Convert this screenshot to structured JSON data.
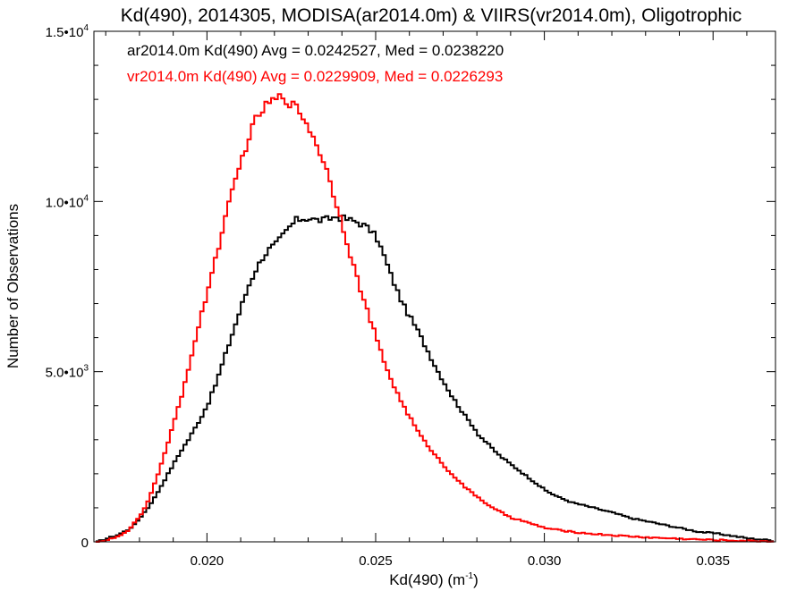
{
  "chart_data": {
    "type": "line",
    "title": "Kd(490), 2014305, MODISA(ar2014.0m) & VIIRS(vr2014.0m), Oligotrophic",
    "xlabel_main": "Kd(490) (m",
    "xlabel_sup": "-1",
    "xlabel_tail": ")",
    "ylabel": "Number of Observations",
    "xlim": [
      0.01665,
      0.03685
    ],
    "ylim": [
      0,
      15000
    ],
    "x_ticks": [
      {
        "value": 0.02,
        "label": "0.020"
      },
      {
        "value": 0.025,
        "label": "0.025"
      },
      {
        "value": 0.03,
        "label": "0.030"
      },
      {
        "value": 0.035,
        "label": "0.035"
      }
    ],
    "y_ticks": [
      {
        "value": 0,
        "mant": "0",
        "sup": ""
      },
      {
        "value": 5000,
        "mant": "5.0•10",
        "sup": "3"
      },
      {
        "value": 10000,
        "mant": "1.0•10",
        "sup": "4"
      },
      {
        "value": 15000,
        "mant": "1.5•10",
        "sup": "4"
      }
    ],
    "legend": [
      {
        "text": "ar2014.0m Kd(490) Avg = 0.0242527, Med = 0.0238220",
        "color": "#000000"
      },
      {
        "text": "vr2014.0m Kd(490) Avg = 0.0229909, Med = 0.0226293",
        "color": "#ff0000"
      }
    ],
    "series": [
      {
        "color": "#000000",
        "x": [
          0.0167,
          0.017,
          0.0173,
          0.0176,
          0.0178,
          0.018,
          0.0182,
          0.0184,
          0.0186,
          0.0188,
          0.019,
          0.0192,
          0.0194,
          0.0196,
          0.0198,
          0.02,
          0.0202,
          0.0204,
          0.0206,
          0.0208,
          0.021,
          0.0212,
          0.0214,
          0.0216,
          0.0218,
          0.022,
          0.0222,
          0.0224,
          0.0226,
          0.0228,
          0.023,
          0.0232,
          0.0234,
          0.0236,
          0.0238,
          0.024,
          0.0242,
          0.0244,
          0.0246,
          0.0248,
          0.025,
          0.0252,
          0.0254,
          0.0256,
          0.0258,
          0.026,
          0.0262,
          0.0264,
          0.0266,
          0.0268,
          0.027,
          0.0272,
          0.0274,
          0.0276,
          0.0278,
          0.028,
          0.0282,
          0.0284,
          0.0286,
          0.0288,
          0.029,
          0.0292,
          0.0294,
          0.0296,
          0.0298,
          0.03,
          0.0304,
          0.0308,
          0.0312,
          0.0316,
          0.032,
          0.0325,
          0.033,
          0.0335,
          0.034,
          0.0345,
          0.035,
          0.0355,
          0.036,
          0.0365,
          0.0368
        ],
        "y": [
          0,
          100,
          200,
          350,
          500,
          750,
          1000,
          1300,
          1650,
          2000,
          2350,
          2700,
          3000,
          3350,
          3700,
          4100,
          4600,
          5200,
          5800,
          6400,
          7000,
          7550,
          8000,
          8350,
          8600,
          8750,
          9000,
          9250,
          9450,
          9500,
          9500,
          9450,
          9450,
          9500,
          9550,
          9500,
          9450,
          9400,
          9300,
          9150,
          8900,
          8400,
          7850,
          7350,
          6900,
          6550,
          6200,
          5800,
          5400,
          5000,
          4650,
          4300,
          4000,
          3700,
          3450,
          3150,
          2950,
          2750,
          2550,
          2400,
          2250,
          2100,
          1950,
          1800,
          1650,
          1500,
          1300,
          1150,
          1050,
          950,
          850,
          700,
          600,
          500,
          400,
          300,
          250,
          180,
          100,
          60,
          30
        ]
      },
      {
        "color": "#ff0000",
        "x": [
          0.0167,
          0.017,
          0.0173,
          0.0176,
          0.0178,
          0.018,
          0.0182,
          0.0184,
          0.0186,
          0.0188,
          0.019,
          0.0192,
          0.0194,
          0.0196,
          0.0198,
          0.02,
          0.0202,
          0.0204,
          0.0206,
          0.0208,
          0.021,
          0.0212,
          0.0214,
          0.0216,
          0.0218,
          0.022,
          0.0222,
          0.0224,
          0.0226,
          0.0228,
          0.023,
          0.0232,
          0.0234,
          0.0236,
          0.0238,
          0.024,
          0.0242,
          0.0244,
          0.0246,
          0.0248,
          0.025,
          0.0252,
          0.0254,
          0.0256,
          0.0258,
          0.026,
          0.0262,
          0.0264,
          0.0266,
          0.0268,
          0.027,
          0.0272,
          0.0274,
          0.0276,
          0.0278,
          0.028,
          0.0282,
          0.0284,
          0.0286,
          0.0288,
          0.029,
          0.0292,
          0.0294,
          0.0296,
          0.0298,
          0.03,
          0.0304,
          0.0308,
          0.0312,
          0.0316,
          0.032,
          0.0325,
          0.033,
          0.0335,
          0.034,
          0.0345,
          0.035,
          0.0355,
          0.036,
          0.0365,
          0.0368
        ],
        "y": [
          0,
          50,
          150,
          300,
          550,
          800,
          1200,
          1700,
          2300,
          2900,
          3600,
          4300,
          5100,
          5900,
          6700,
          7500,
          8300,
          9100,
          9900,
          10600,
          11300,
          11900,
          12400,
          12700,
          12900,
          13000,
          13100,
          12900,
          12750,
          12500,
          12100,
          11700,
          11200,
          10600,
          9900,
          9200,
          8450,
          7750,
          7100,
          6500,
          5900,
          5300,
          4800,
          4350,
          3950,
          3600,
          3250,
          2950,
          2700,
          2450,
          2200,
          2000,
          1800,
          1600,
          1450,
          1300,
          1150,
          1000,
          900,
          800,
          700,
          650,
          580,
          520,
          460,
          400,
          340,
          290,
          250,
          220,
          190,
          160,
          130,
          110,
          90,
          70,
          55,
          40,
          30,
          20,
          15
        ]
      }
    ]
  }
}
